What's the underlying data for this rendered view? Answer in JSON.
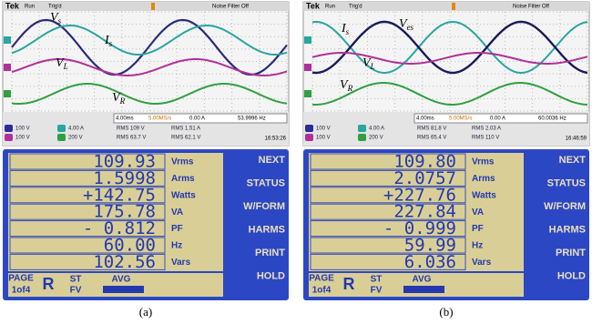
{
  "panels": [
    {
      "scope": {
        "brand": "Tek",
        "status": "Run",
        "trigger": "Trig'd",
        "filter": "Noise Filter Off",
        "traces": [
          {
            "label": "V",
            "sub": "s"
          },
          {
            "label": "I",
            "sub": "s"
          },
          {
            "label": "V",
            "sub": "L"
          },
          {
            "label": "V",
            "sub": "R"
          }
        ],
        "readout": [
          "4.00ms",
          "5.00MS/s",
          "0.00 A",
          "53.9996 Hz"
        ],
        "channels": [
          "100 V",
          "4.00 A",
          "100 V",
          "200 V"
        ],
        "rms": [
          "RMS 109 V",
          "RMS 1.51 A",
          "RMS 63.7 V",
          "RMS 62.1 V"
        ],
        "time": "16:53:26"
      },
      "meter": {
        "rows": [
          {
            "value": "109.93",
            "unit": "Vrms"
          },
          {
            "value": "1.5998",
            "unit": "Arms"
          },
          {
            "value": "+142.75",
            "unit": "Watts"
          },
          {
            "value": "175.78",
            "unit": "VA"
          },
          {
            "value": "- 0.812",
            "unit": "PF"
          },
          {
            "value": "60.00",
            "unit": "Hz"
          },
          {
            "value": "102.56",
            "unit": "Vars"
          }
        ],
        "buttons": [
          "NEXT",
          "STATUS",
          "W/FORM",
          "HARMS",
          "PRINT",
          "HOLD"
        ],
        "footer": [
          "PAGE",
          "1of4",
          "R",
          "ST",
          "FV",
          "AVG"
        ]
      },
      "caption": "(a)"
    },
    {
      "scope": {
        "brand": "Tek",
        "status": "Run",
        "trigger": "Trig'd",
        "filter": "Noise Filter Off",
        "traces": [
          {
            "label": "I",
            "sub": "s"
          },
          {
            "label": "V",
            "sub": "es"
          },
          {
            "label": "V",
            "sub": "L"
          },
          {
            "label": "V",
            "sub": "R"
          }
        ],
        "readout": [
          "4.00ms",
          "5.00MS/s",
          "0.00 A",
          "60.0036 Hz"
        ],
        "channels": [
          "100 V",
          "4.00 A",
          "100 V",
          "200 V"
        ],
        "rms": [
          "RMS 81.8 V",
          "RMS 2.03 A",
          "RMS 65.4 V",
          "RMS 110 V"
        ],
        "time": "16:46:59"
      },
      "meter": {
        "rows": [
          {
            "value": "109.80",
            "unit": "Vrms"
          },
          {
            "value": "2.0757",
            "unit": "Arms"
          },
          {
            "value": "+227.76",
            "unit": "Watts"
          },
          {
            "value": "227.84",
            "unit": "VA"
          },
          {
            "value": "- 0.999",
            "unit": "PF"
          },
          {
            "value": "59.99",
            "unit": "Hz"
          },
          {
            "value": "6.036",
            "unit": "Vars"
          }
        ],
        "buttons": [
          "NEXT",
          "STATUS",
          "W/FORM",
          "HARMS",
          "PRINT",
          "HOLD"
        ],
        "footer": [
          "PAGE",
          "1of4",
          "R",
          "ST",
          "FV",
          "AVG"
        ]
      },
      "caption": "(b)"
    }
  ]
}
